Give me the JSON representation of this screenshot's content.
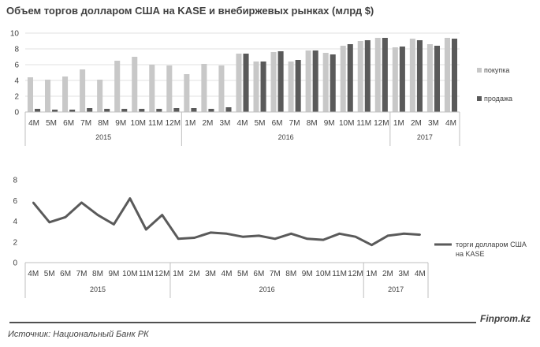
{
  "title": "Объем торгов долларом США на KASE и внебиржевых рынках (млрд $)",
  "brand": "Finprom.kz",
  "source": "Источник: Национальный Банк РК",
  "colors": {
    "buy": "#c8c8c8",
    "sell": "#5a5a5a",
    "line": "#5a5a5a",
    "axis": "#bfbfbf",
    "grid": "#e0e0e0"
  },
  "chart_data": [
    {
      "type": "bar",
      "title": "Объем торгов долларом США на KASE и внебиржевых рынках (млрд $)",
      "categories": [
        "4M",
        "5M",
        "6M",
        "7M",
        "8M",
        "9M",
        "10M",
        "11M",
        "12M",
        "1M",
        "2M",
        "3M",
        "4M",
        "5M",
        "6M",
        "7M",
        "8M",
        "9M",
        "10M",
        "11M",
        "12M",
        "1M",
        "2M",
        "3M",
        "4M"
      ],
      "year_groups": [
        {
          "label": "2015",
          "start": 0,
          "end": 8
        },
        {
          "label": "2016",
          "start": 9,
          "end": 20
        },
        {
          "label": "2017",
          "start": 21,
          "end": 24
        }
      ],
      "ylim": [
        0,
        10
      ],
      "yticks": [
        0,
        2,
        4,
        6,
        8,
        10
      ],
      "grid": true,
      "legend_position": "right",
      "series": [
        {
          "name": "покупка",
          "values": [
            4.4,
            4.1,
            4.5,
            5.4,
            4.1,
            6.5,
            7.0,
            6.0,
            5.9,
            4.8,
            6.1,
            5.9,
            7.4,
            6.4,
            7.6,
            6.4,
            7.8,
            7.5,
            8.4,
            9.0,
            9.4,
            8.2,
            9.3,
            8.6,
            9.4
          ]
        },
        {
          "name": "продажа",
          "values": [
            0.4,
            0.3,
            0.3,
            0.5,
            0.4,
            0.4,
            0.4,
            0.4,
            0.5,
            0.5,
            0.4,
            0.6,
            7.4,
            6.4,
            7.7,
            6.6,
            7.8,
            7.3,
            8.6,
            9.1,
            9.4,
            8.3,
            9.1,
            8.4,
            9.3
          ]
        }
      ]
    },
    {
      "type": "line",
      "categories": [
        "4M",
        "5M",
        "6M",
        "7M",
        "8M",
        "9M",
        "10M",
        "11M",
        "12M",
        "1M",
        "2M",
        "3M",
        "4M",
        "5M",
        "6M",
        "7M",
        "8M",
        "9M",
        "10M",
        "11M",
        "12M",
        "1M",
        "2M",
        "3M",
        "4M"
      ],
      "year_groups": [
        {
          "label": "2015",
          "start": 0,
          "end": 8
        },
        {
          "label": "2016",
          "start": 9,
          "end": 20
        },
        {
          "label": "2017",
          "start": 21,
          "end": 24
        }
      ],
      "ylim": [
        0,
        8
      ],
      "yticks": [
        0,
        2,
        4,
        6,
        8
      ],
      "grid": false,
      "legend_position": "right",
      "series": [
        {
          "name": "торги долларом США на KASE",
          "values": [
            5.8,
            3.9,
            4.4,
            5.8,
            4.6,
            3.7,
            6.2,
            3.2,
            4.6,
            2.3,
            2.4,
            2.9,
            2.8,
            2.5,
            2.6,
            2.3,
            2.8,
            2.3,
            2.2,
            2.8,
            2.5,
            1.7,
            2.6,
            2.8,
            2.7
          ]
        }
      ]
    }
  ]
}
